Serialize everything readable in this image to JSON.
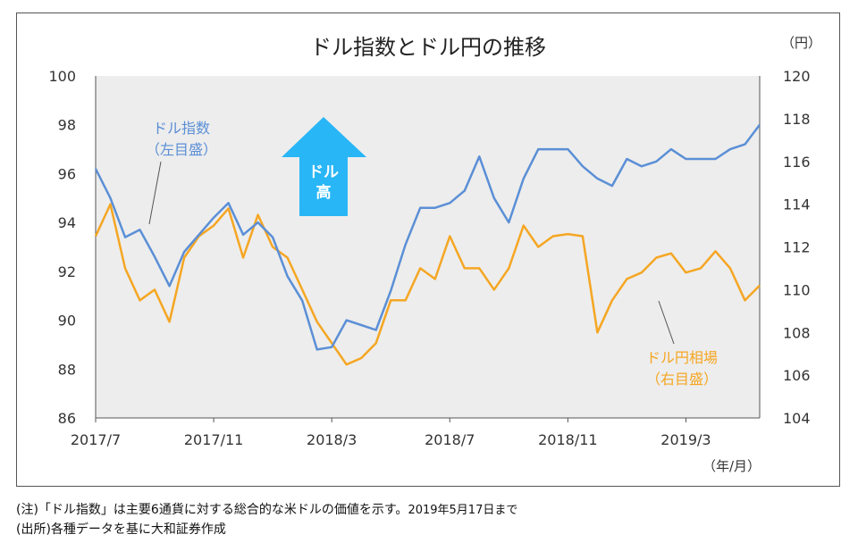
{
  "chart_data": {
    "type": "line",
    "title": "ドル指数とドル円の推移",
    "left_axis": {
      "ylim": [
        86,
        100
      ],
      "ticks": [
        86,
        88,
        90,
        92,
        94,
        96,
        98,
        100
      ]
    },
    "right_axis": {
      "ylim": [
        104,
        120
      ],
      "ticks": [
        104,
        106,
        108,
        110,
        112,
        114,
        116,
        118,
        120
      ],
      "unit": "（円）"
    },
    "x_ticks": [
      "2017/7",
      "2017/11",
      "2018/3",
      "2018/7",
      "2018/11",
      "2019/3"
    ],
    "xlabel": "（年/月）",
    "x_range": [
      "2017/7",
      "2019/5/17"
    ],
    "annotation_arrow": "ドル高",
    "colors": {
      "dollar_index": "#5B8FD6",
      "usdjpy": "#F5A623",
      "arrow": "#29B6F6",
      "plot_bg": "#EDEDED"
    },
    "series": [
      {
        "name": "ドル指数",
        "legend_line1": "ドル指数",
        "legend_line2": "（左目盛）",
        "axis": "left",
        "x": [
          0,
          0.5,
          1,
          1.5,
          2,
          2.5,
          3,
          3.5,
          4,
          4.5,
          5,
          5.5,
          6,
          6.5,
          7,
          7.5,
          8,
          8.5,
          9,
          9.5,
          10,
          10.5,
          11,
          11.5,
          12,
          12.5,
          13,
          13.5,
          14,
          14.5,
          15,
          15.5,
          16,
          16.5,
          17,
          17.5,
          18,
          18.5,
          19,
          19.5,
          20,
          20.5,
          21,
          21.5,
          22,
          22.5
        ],
        "values": [
          96.2,
          95.0,
          93.4,
          93.7,
          92.6,
          91.4,
          92.8,
          93.5,
          94.2,
          94.8,
          93.5,
          94.0,
          93.4,
          91.8,
          90.8,
          88.8,
          88.9,
          90.0,
          89.8,
          89.6,
          91.2,
          93.1,
          94.6,
          94.6,
          94.8,
          95.3,
          96.7,
          95.0,
          94.0,
          95.8,
          97.0,
          97.0,
          97.0,
          96.3,
          95.8,
          95.5,
          96.6,
          96.3,
          96.5,
          97.0,
          96.6,
          96.6,
          96.6,
          97.0,
          97.2,
          98.0
        ]
      },
      {
        "name": "ドル円相場",
        "legend_line1": "ドル円相場",
        "legend_line2": "（右目盛）",
        "axis": "right",
        "x": [
          0,
          0.5,
          1,
          1.5,
          2,
          2.5,
          3,
          3.5,
          4,
          4.5,
          5,
          5.5,
          6,
          6.5,
          7,
          7.5,
          8,
          8.5,
          9,
          9.5,
          10,
          10.5,
          11,
          11.5,
          12,
          12.5,
          13,
          13.5,
          14,
          14.5,
          15,
          15.5,
          16,
          16.5,
          17,
          17.5,
          18,
          18.5,
          19,
          19.5,
          20,
          20.5,
          21,
          21.5,
          22,
          22.5
        ],
        "values": [
          112.5,
          114.0,
          111.0,
          109.5,
          110.0,
          108.5,
          111.5,
          112.5,
          113.0,
          113.8,
          111.5,
          113.5,
          112.0,
          111.5,
          110.0,
          108.5,
          107.5,
          106.5,
          106.8,
          107.5,
          109.5,
          109.5,
          111.0,
          110.5,
          112.5,
          111.0,
          111.0,
          110.0,
          111.0,
          113.0,
          112.0,
          112.5,
          112.6,
          112.5,
          108.0,
          109.5,
          110.5,
          110.8,
          111.5,
          111.7,
          110.8,
          111.0,
          111.8,
          111.0,
          109.5,
          110.2
        ]
      }
    ]
  },
  "notes": {
    "line1_main": "(注)「ドル指数」は主要6通貨に対する総合的な米ドルの価値を示す。",
    "line1_small": "2019年5月17日まで",
    "line2": "(出所)各種データを基に大和証券作成"
  }
}
